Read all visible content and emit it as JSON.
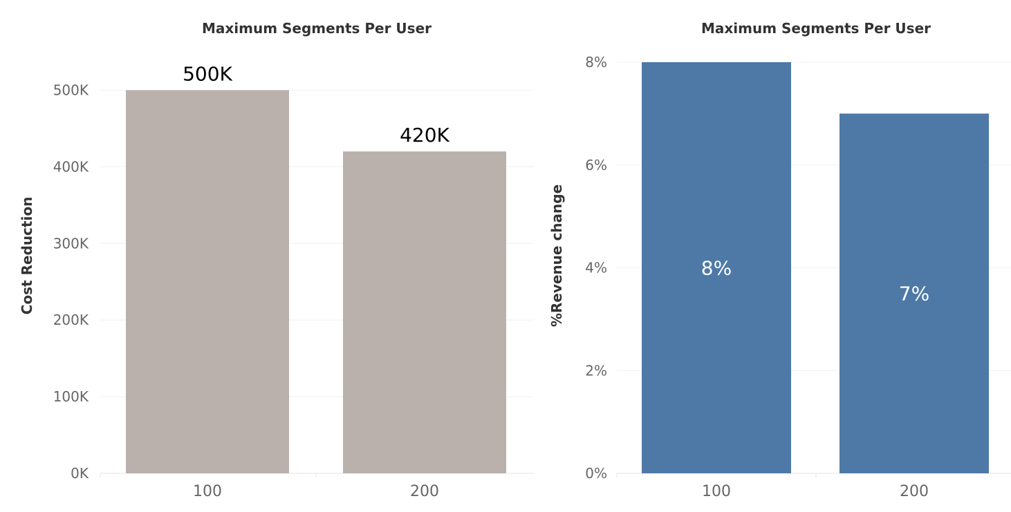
{
  "chart_data": [
    {
      "type": "bar",
      "title": "Maximum Segments Per User",
      "ylabel": "Cost Reduction",
      "xlabel": "",
      "categories": [
        "100",
        "200"
      ],
      "values": [
        500000,
        420000
      ],
      "data_labels": [
        "500K",
        "420K"
      ],
      "data_label_position": "above",
      "ylim": [
        0,
        550000
      ],
      "yticks": [
        0,
        100000,
        200000,
        300000,
        400000,
        500000
      ],
      "ytick_labels": [
        "0K",
        "100K",
        "200K",
        "300K",
        "400K",
        "500K"
      ],
      "bar_color": "#bab0ac",
      "grid": true,
      "legend": "none"
    },
    {
      "type": "bar",
      "title": "Maximum Segments Per User",
      "ylabel": "%Revenue change",
      "xlabel": "",
      "categories": [
        "100",
        "200"
      ],
      "values": [
        8,
        7
      ],
      "data_labels": [
        "8%",
        "7%"
      ],
      "data_label_position": "inside",
      "ylim": [
        0,
        8
      ],
      "yticks": [
        0,
        2,
        4,
        6,
        8
      ],
      "ytick_labels": [
        "0%",
        "2%",
        "4%",
        "6%",
        "8%"
      ],
      "bar_color": "#4e79a7",
      "grid": true,
      "legend": "none"
    }
  ]
}
